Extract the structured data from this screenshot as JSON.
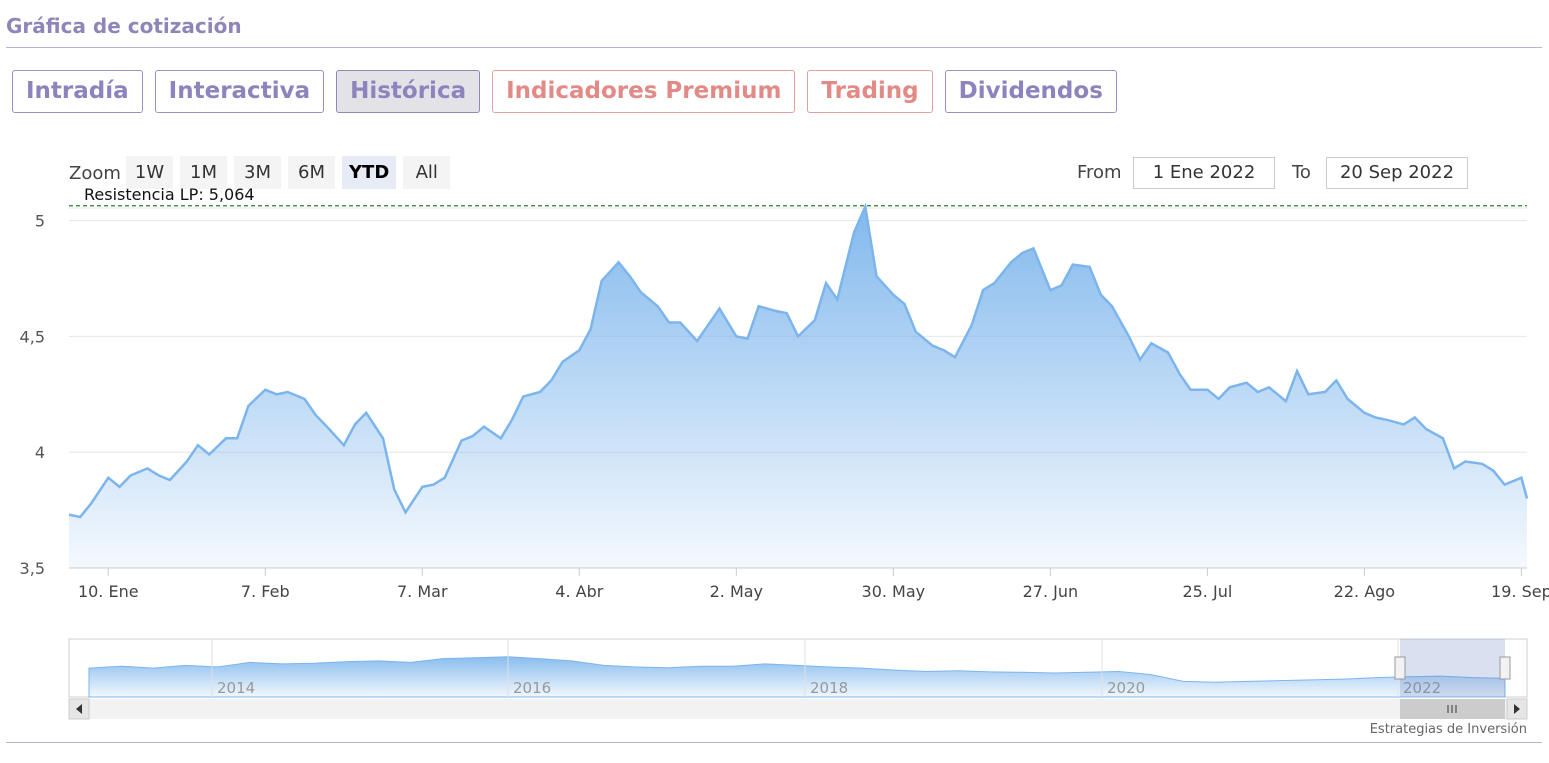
{
  "header": {
    "title": "Gráfica de cotización"
  },
  "tabs": [
    {
      "label": "Intradía",
      "state": "normal"
    },
    {
      "label": "Interactiva",
      "state": "normal"
    },
    {
      "label": "Histórica",
      "state": "active"
    },
    {
      "label": "Indicadores Premium",
      "state": "premium"
    },
    {
      "label": "Trading",
      "state": "premium"
    },
    {
      "label": "Dividendos",
      "state": "normal"
    }
  ],
  "range_selector": {
    "zoom_label": "Zoom",
    "buttons": [
      "1W",
      "1M",
      "3M",
      "6M",
      "YTD",
      "All"
    ],
    "selected": "YTD",
    "from_label": "From",
    "from_value": "1 Ene 2022",
    "to_label": "To",
    "to_value": "20 Sep 2022"
  },
  "colors": {
    "accent": "#8d83bd",
    "premium": "#e28a86",
    "series": "#7cb5ec",
    "resistance": "#2e7d32"
  },
  "chart_data": {
    "type": "area",
    "title": "",
    "xlabel": "",
    "ylabel": "",
    "ylim": [
      3.5,
      5.05
    ],
    "yticks": [
      3.5,
      4,
      4.5,
      5
    ],
    "ytick_labels": [
      "3,5",
      "4",
      "4,5",
      "5"
    ],
    "xlim": [
      "2022-01-03",
      "2022-09-20"
    ],
    "xticks": [
      {
        "date": "2022-01-10",
        "label": "10. Ene"
      },
      {
        "date": "2022-02-07",
        "label": "7. Feb"
      },
      {
        "date": "2022-03-07",
        "label": "7. Mar"
      },
      {
        "date": "2022-04-04",
        "label": "4. Abr"
      },
      {
        "date": "2022-05-02",
        "label": "2. May"
      },
      {
        "date": "2022-05-30",
        "label": "30. May"
      },
      {
        "date": "2022-06-27",
        "label": "27. Jun"
      },
      {
        "date": "2022-07-25",
        "label": "25. Jul"
      },
      {
        "date": "2022-08-22",
        "label": "22. Ago"
      },
      {
        "date": "2022-09-19",
        "label": "19. Sep"
      }
    ],
    "grid": true,
    "resistance_line": {
      "value": 5.064,
      "label": "Resistencia LP: 5,064"
    },
    "series": [
      {
        "x": [
          "2022-01-03",
          "2022-01-05",
          "2022-01-07",
          "2022-01-10",
          "2022-01-12",
          "2022-01-14",
          "2022-01-17",
          "2022-01-19",
          "2022-01-21",
          "2022-01-24",
          "2022-01-26",
          "2022-01-28",
          "2022-01-31",
          "2022-02-02",
          "2022-02-04",
          "2022-02-07",
          "2022-02-09",
          "2022-02-11",
          "2022-02-14",
          "2022-02-16",
          "2022-02-18",
          "2022-02-21",
          "2022-02-23",
          "2022-02-25",
          "2022-02-28",
          "2022-03-02",
          "2022-03-04",
          "2022-03-07",
          "2022-03-09",
          "2022-03-11",
          "2022-03-14",
          "2022-03-16",
          "2022-03-18",
          "2022-03-21",
          "2022-03-23",
          "2022-03-25",
          "2022-03-28",
          "2022-03-30",
          "2022-04-01",
          "2022-04-04",
          "2022-04-06",
          "2022-04-08",
          "2022-04-11",
          "2022-04-13",
          "2022-04-15",
          "2022-04-18",
          "2022-04-20",
          "2022-04-22",
          "2022-04-25",
          "2022-04-27",
          "2022-04-29",
          "2022-05-02",
          "2022-05-04",
          "2022-05-06",
          "2022-05-09",
          "2022-05-11",
          "2022-05-13",
          "2022-05-16",
          "2022-05-18",
          "2022-05-20",
          "2022-05-23",
          "2022-05-25",
          "2022-05-27",
          "2022-05-30",
          "2022-06-01",
          "2022-06-03",
          "2022-06-06",
          "2022-06-08",
          "2022-06-10",
          "2022-06-13",
          "2022-06-15",
          "2022-06-17",
          "2022-06-20",
          "2022-06-22",
          "2022-06-24",
          "2022-06-27",
          "2022-06-29",
          "2022-07-01",
          "2022-07-04",
          "2022-07-06",
          "2022-07-08",
          "2022-07-11",
          "2022-07-13",
          "2022-07-15",
          "2022-07-18",
          "2022-07-20",
          "2022-07-22",
          "2022-07-25",
          "2022-07-27",
          "2022-07-29",
          "2022-08-01",
          "2022-08-03",
          "2022-08-05",
          "2022-08-08",
          "2022-08-10",
          "2022-08-12",
          "2022-08-15",
          "2022-08-17",
          "2022-08-19",
          "2022-08-22",
          "2022-08-24",
          "2022-08-26",
          "2022-08-29",
          "2022-08-31",
          "2022-09-02",
          "2022-09-05",
          "2022-09-07",
          "2022-09-09",
          "2022-09-12",
          "2022-09-14",
          "2022-09-16",
          "2022-09-19",
          "2022-09-20"
        ],
        "values": [
          3.73,
          3.72,
          3.78,
          3.89,
          3.85,
          3.9,
          3.93,
          3.9,
          3.88,
          3.96,
          4.03,
          3.99,
          4.06,
          4.06,
          4.2,
          4.27,
          4.25,
          4.26,
          4.23,
          4.16,
          4.11,
          4.03,
          4.12,
          4.17,
          4.06,
          3.84,
          3.74,
          3.85,
          3.86,
          3.89,
          4.05,
          4.07,
          4.11,
          4.06,
          4.14,
          4.24,
          4.26,
          4.31,
          4.39,
          4.44,
          4.53,
          4.74,
          4.82,
          4.76,
          4.69,
          4.63,
          4.56,
          4.56,
          4.48,
          4.55,
          4.62,
          4.5,
          4.49,
          4.63,
          4.61,
          4.6,
          4.5,
          4.57,
          4.73,
          4.66,
          4.95,
          5.06,
          4.76,
          4.68,
          4.64,
          4.52,
          4.46,
          4.44,
          4.41,
          4.55,
          4.7,
          4.73,
          4.82,
          4.86,
          4.88,
          4.7,
          4.72,
          4.81,
          4.8,
          4.68,
          4.63,
          4.5,
          4.4,
          4.47,
          4.43,
          4.34,
          4.27,
          4.27,
          4.23,
          4.28,
          4.3,
          4.26,
          4.28,
          4.22,
          4.35,
          4.25,
          4.26,
          4.31,
          4.23,
          4.17,
          4.15,
          4.14,
          4.12,
          4.15,
          4.1,
          4.06,
          3.93,
          3.96,
          3.95,
          3.92,
          3.86,
          3.89,
          3.8
        ]
      }
    ],
    "navigator": {
      "xtick_labels": [
        "2014",
        "2016",
        "2018",
        "2020",
        "2022"
      ]
    }
  },
  "credit": "Estrategias de Inversión"
}
